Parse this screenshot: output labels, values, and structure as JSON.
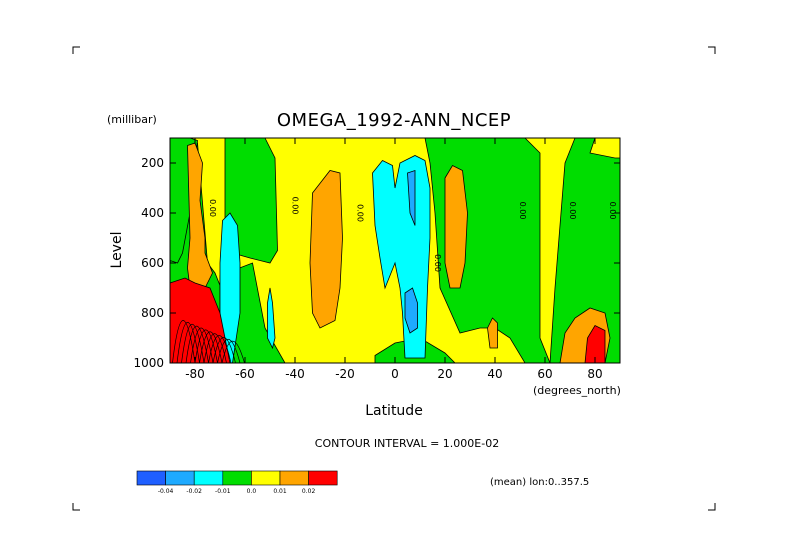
{
  "title": "OMEGA_1992-ANN_NCEP",
  "units_label": "(millibar)",
  "contour_interval_text": "CONTOUR INTERVAL = 1.000E-02",
  "mean_text": "(mean) lon:0..357.5",
  "chart_data": {
    "type": "heatmap",
    "title": "OMEGA_1992-ANN_NCEP",
    "xlabel": "Latitude",
    "xunits": "(degrees_north)",
    "ylabel": "Level",
    "yunits": "(millibar)",
    "xlim": [
      -90,
      90
    ],
    "ylim": [
      1000,
      100
    ],
    "x_ticks": [
      -80,
      -60,
      -40,
      -20,
      0,
      20,
      40,
      60,
      80
    ],
    "y_ticks": [
      1000,
      800,
      600,
      400,
      200
    ],
    "x_tick_labels": [
      "-80",
      "-60",
      "-40",
      "-20",
      "0",
      "20",
      "40",
      "60",
      "80"
    ],
    "y_tick_labels": [
      "1000",
      "800",
      "600",
      "400",
      "200"
    ],
    "contour_interval": 0.01,
    "contour_labels": [
      {
        "text": "0.00",
        "lat": -74,
        "lev": 380
      },
      {
        "text": "0.00",
        "lat": -41,
        "lev": 370
      },
      {
        "text": "0.00",
        "lat": -15,
        "lev": 400
      },
      {
        "text": "0.00",
        "lat": 16,
        "lev": 600
      },
      {
        "text": "0.00",
        "lat": 50,
        "lev": 390
      },
      {
        "text": "0.00",
        "lat": 70,
        "lev": 390
      },
      {
        "text": "0.00",
        "lat": 86,
        "lev": 390
      }
    ],
    "legend": {
      "bins": [
        "-0.04",
        "-0.02",
        "-0.01",
        "0.0",
        "0.01",
        "0.02"
      ],
      "colors": [
        "#1f5fff",
        "#1eaaff",
        "#00ffff",
        "#00dd00",
        "#ffff00",
        "#ffa500",
        "#ff0000"
      ]
    },
    "fields": {
      "green": [
        [
          -90,
          610,
          -86,
          120,
          -83,
          100,
          -79,
          120,
          -75,
          600,
          -72,
          640,
          -70,
          690,
          -67,
          1000,
          -90,
          1000
        ],
        [
          -70,
          650,
          -57,
          600,
          -52,
          860,
          -44,
          1000,
          -70,
          1000
        ],
        [
          -68,
          100,
          -52,
          100,
          -48,
          180,
          -47,
          550,
          -50,
          600,
          -58,
          580,
          -65,
          560,
          -68,
          500
        ],
        [
          -8,
          970,
          0,
          920,
          10,
          900,
          20,
          960,
          24,
          1000,
          -8,
          1000
        ],
        [
          12,
          100,
          52,
          100,
          58,
          160,
          58,
          400,
          58,
          700,
          58,
          900,
          62,
          1000,
          52,
          1000,
          46,
          900,
          40,
          860,
          34,
          860,
          26,
          880,
          18,
          700,
          16,
          400,
          14,
          200
        ],
        [
          -86,
          100,
          -82,
          100,
          -79,
          110,
          -80,
          200,
          -82,
          400,
          -85,
          560,
          -87,
          600,
          -90,
          590,
          -90,
          100
        ],
        [
          62,
          1000,
          64,
          700,
          66,
          450,
          68,
          200,
          72,
          100,
          80,
          100,
          78,
          160,
          88,
          180,
          90,
          180,
          90,
          1000
        ]
      ],
      "cyan": [
        [
          -69,
          430,
          -66,
          400,
          -63,
          450,
          -62,
          600,
          -62,
          800,
          -65,
          1000,
          -68,
          1000,
          -70,
          900,
          -70,
          600
        ],
        [
          -50,
          700,
          -49,
          760,
          -48,
          900,
          -49,
          940,
          -51,
          900,
          -51,
          760
        ],
        [
          -9,
          240,
          -5,
          190,
          -1,
          210,
          0,
          300,
          2,
          200,
          8,
          170,
          12,
          190,
          14,
          300,
          14,
          500,
          13,
          700,
          12,
          980,
          4,
          980,
          3,
          800,
          2,
          700,
          0,
          600,
          -4,
          700,
          -6,
          580,
          -8,
          450
        ]
      ],
      "blue": [
        [
          5,
          240,
          8,
          230,
          8,
          450,
          6,
          400
        ],
        [
          4,
          720,
          7,
          700,
          9,
          760,
          9,
          860,
          6,
          880,
          4,
          820
        ]
      ],
      "orange": [
        [
          -83,
          130,
          -80,
          120,
          -77,
          200,
          -78,
          350,
          -76,
          500,
          -76,
          560,
          -73,
          640,
          -76,
          700,
          -82,
          700,
          -83,
          620,
          -82,
          500
        ],
        [
          -33,
          320,
          -26,
          230,
          -22,
          240,
          -21,
          500,
          -22,
          700,
          -24,
          830,
          -30,
          860,
          -33,
          800,
          -34,
          600
        ],
        [
          20,
          260,
          23,
          210,
          27,
          230,
          29,
          400,
          28,
          600,
          26,
          700,
          22,
          700,
          20,
          600
        ],
        [
          37,
          860,
          39,
          820,
          41,
          840,
          41,
          940,
          38,
          940
        ],
        [
          66,
          1000,
          68,
          880,
          72,
          820,
          78,
          780,
          84,
          800,
          86,
          900,
          84,
          1000
        ]
      ],
      "red": [
        [
          -90,
          680,
          -84,
          660,
          -80,
          680,
          -74,
          700,
          -70,
          800,
          -67,
          950,
          -66,
          1000,
          -90,
          1000
        ],
        [
          76,
          1000,
          77,
          900,
          80,
          850,
          84,
          870,
          84,
          1000
        ]
      ]
    }
  }
}
